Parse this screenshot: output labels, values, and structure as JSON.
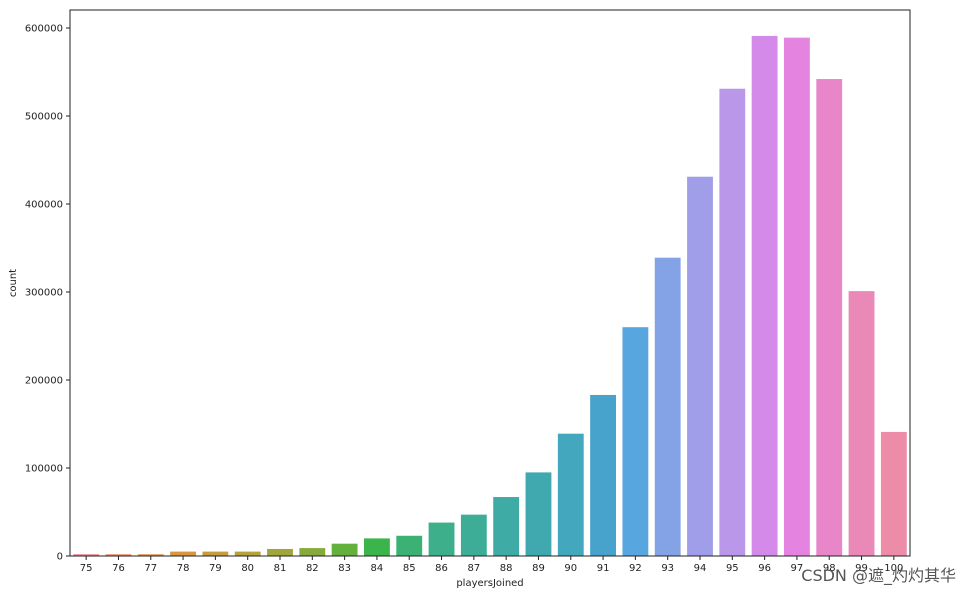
{
  "chart_data": {
    "type": "bar",
    "categories": [
      "75",
      "76",
      "77",
      "78",
      "79",
      "80",
      "81",
      "82",
      "83",
      "84",
      "85",
      "86",
      "87",
      "88",
      "89",
      "90",
      "91",
      "92",
      "93",
      "94",
      "95",
      "96",
      "97",
      "98",
      "99",
      "100"
    ],
    "values": [
      2000,
      2000,
      2000,
      5000,
      5000,
      5000,
      8000,
      9000,
      14000,
      20000,
      23000,
      38000,
      47000,
      67000,
      95000,
      139000,
      183000,
      260000,
      339000,
      431000,
      531000,
      591000,
      589000,
      542000,
      301000,
      141000
    ],
    "colors": [
      "#f27f8e",
      "#ef8861",
      "#e48f47",
      "#d9963f",
      "#c79c3d",
      "#b5a23b",
      "#a1a63c",
      "#86ab3c",
      "#63b03c",
      "#3bb44b",
      "#3bb274",
      "#3daf8a",
      "#3dad98",
      "#3faba5",
      "#40a9b0",
      "#43a7bd",
      "#47a3cb",
      "#58a6e0",
      "#83a3e6",
      "#a19ee9",
      "#bb97ea",
      "#d38ae8",
      "#e583e0",
      "#e886c9",
      "#ea89b8",
      "#ec8ca8"
    ],
    "xlabel": "playersJoined",
    "ylabel": "count",
    "ylim": [
      0,
      600000
    ],
    "yticks": [
      0,
      100000,
      200000,
      300000,
      400000,
      500000,
      600000
    ],
    "grid": false
  },
  "watermark": "CSDN @遮_灼灼其华"
}
